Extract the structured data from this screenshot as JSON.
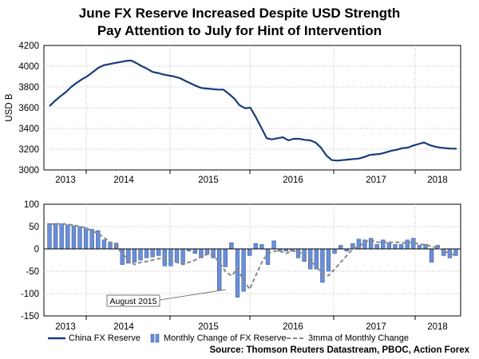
{
  "title_line1": "June FX Reserve Increased Despite USD Strength",
  "title_line2": "Pay Attention to July for Hint of Intervention",
  "source": "Source: Thomson Reuters Datastream, PBOC, Action Forex",
  "annotation": "August 2015",
  "colors": {
    "line": "#163c78",
    "bar": "#6b8fd6",
    "bar_edge": "#2b4d9a",
    "mma": "#888888"
  },
  "chart_data": [
    {
      "type": "line",
      "series": [
        {
          "name": "China FX Reserve",
          "values": [
            3615,
            3665,
            3710,
            3750,
            3800,
            3840,
            3875,
            3905,
            3945,
            3985,
            4010,
            4020,
            4030,
            4040,
            4050,
            4055,
            4030,
            4000,
            3975,
            3945,
            3935,
            3920,
            3910,
            3900,
            3885,
            3860,
            3835,
            3810,
            3790,
            3785,
            3780,
            3775,
            3775,
            3735,
            3690,
            3625,
            3595,
            3600,
            3510,
            3410,
            3305,
            3295,
            3305,
            3315,
            3285,
            3300,
            3300,
            3290,
            3285,
            3265,
            3215,
            3140,
            3095,
            3090,
            3095,
            3100,
            3105,
            3110,
            3125,
            3145,
            3150,
            3155,
            3170,
            3185,
            3195,
            3210,
            3215,
            3235,
            3250,
            3265,
            3240,
            3225,
            3215,
            3210,
            3205,
            3205
          ]
        }
      ],
      "xlabel": "",
      "ylabel": "USD B",
      "ylim": [
        3000,
        4200
      ],
      "yticks": [
        3000,
        3200,
        3400,
        3600,
        3800,
        4000,
        4200
      ],
      "year_labels": [
        "2013",
        "2014",
        "2015",
        "2016",
        "2017",
        "2018"
      ]
    },
    {
      "type": "bar",
      "series": [
        {
          "name": "Monthly Change of FX Reserve",
          "values": [
            57,
            57,
            56,
            54,
            52,
            50,
            47,
            44,
            41,
            20,
            15,
            13,
            -35,
            -32,
            -30,
            -25,
            -20,
            -18,
            -15,
            -38,
            -38,
            -30,
            -33,
            -5,
            -10,
            -20,
            -12,
            -20,
            -92,
            -40,
            14,
            -108,
            -95,
            -15,
            12,
            10,
            -35,
            18,
            -5,
            -5,
            -5,
            -20,
            -28,
            -45,
            -45,
            -75,
            -50,
            -10,
            8,
            -5,
            12,
            22,
            20,
            24,
            10,
            20,
            14,
            10,
            10,
            20,
            24,
            8,
            10,
            -30,
            8,
            -15,
            -20,
            -15
          ]
        },
        {
          "name": "3mma of Monthly Change",
          "values": [
            55,
            56,
            56,
            55,
            53,
            50,
            47,
            40,
            35,
            25,
            15,
            5,
            -10,
            -25,
            -35,
            -30,
            -28,
            -25,
            -22,
            -20,
            -25,
            -30,
            -35,
            -30,
            -25,
            -18,
            -12,
            -15,
            -30,
            -50,
            -60,
            -45,
            -70,
            -90,
            -60,
            -30,
            -10,
            -5,
            -5,
            -10,
            -5,
            -5,
            -15,
            -25,
            -40,
            -55,
            -60,
            -45,
            -30,
            -15,
            0,
            5,
            15,
            20,
            15,
            15,
            15,
            15,
            14,
            13,
            15,
            10,
            10,
            5,
            3,
            -5,
            -10,
            -15
          ]
        }
      ],
      "ylim": [
        -150,
        100
      ],
      "yticks": [
        -150,
        -100,
        -50,
        0,
        50,
        100
      ],
      "year_labels": [
        "2013",
        "2014",
        "2015",
        "2016",
        "2017",
        "2018"
      ]
    }
  ]
}
